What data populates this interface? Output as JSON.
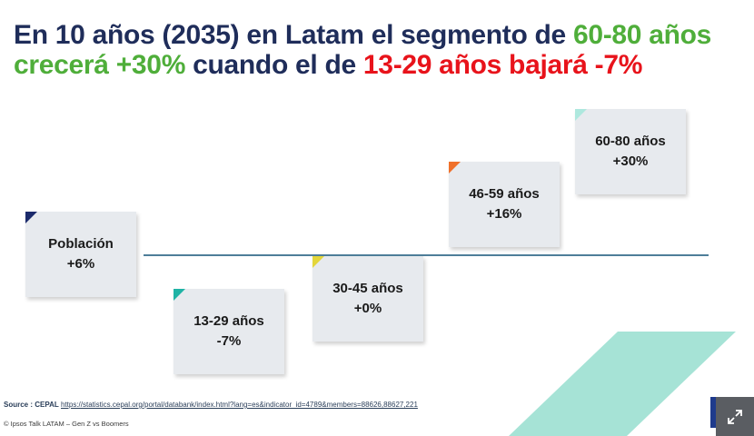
{
  "title": {
    "line1_prefix": "En 10 años (2035) en Latam el segmento de ",
    "line1_highlight": "60-80 años",
    "line2_highlight1": "crecerá +30%",
    "line2_middle": " cuando el de ",
    "line2_highlight2": "13-29 años bajará -7%"
  },
  "colors": {
    "title": "#1f2d5a",
    "green": "#4fae3a",
    "red": "#e8131b",
    "baseline": "#4e7e99",
    "card": "#e7eaee",
    "stripe": "#a6e3d6"
  },
  "cards": [
    {
      "label": "Población",
      "value": "+6%",
      "accent": "#1b2a6b"
    },
    {
      "label": "13-29 años",
      "value": "-7%",
      "accent": "#1fb3a5"
    },
    {
      "label": "30-45 años",
      "value": "+0%",
      "accent": "#e3d63a"
    },
    {
      "label": "46-59 años",
      "value": "+16%",
      "accent": "#f0702a"
    },
    {
      "label": "60-80 años",
      "value": "+30%",
      "accent": "#aee8de"
    }
  ],
  "footer": {
    "source_label": "Source : CEPAL",
    "source_url": "https://statistics.cepal.org/portal/databank/index.html?lang=es&indicator_id=4789&members=88626,88627,221",
    "copyright": "© Ipsos Talk LATAM – Gen Z vs Boomers"
  },
  "icons": {
    "expand": "expand-arrows-icon",
    "logo": "ipsos-logo-icon"
  }
}
